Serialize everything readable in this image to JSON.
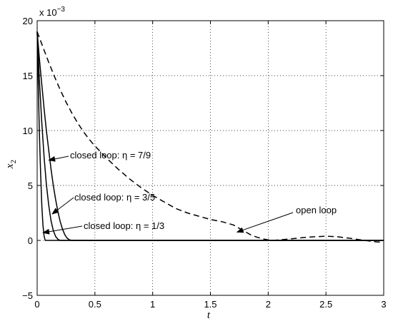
{
  "chart_data": {
    "type": "line",
    "xlabel": "t",
    "ylabel": "x",
    "ylabel_subscript": "2",
    "scale_note": "x 10",
    "scale_exponent": "−3",
    "xlim": [
      0,
      3
    ],
    "ylim": [
      -5,
      20
    ],
    "xticks": [
      "0",
      "0.5",
      "1",
      "1.5",
      "2",
      "2.5",
      "3"
    ],
    "yticks": [
      "−5",
      "0",
      "5",
      "10",
      "15",
      "20"
    ],
    "grid": true,
    "series": [
      {
        "name": "open loop",
        "style": "dashed",
        "points": [
          [
            0,
            19.0
          ],
          [
            0.05,
            17.6
          ],
          [
            0.1,
            16.2
          ],
          [
            0.15,
            14.9
          ],
          [
            0.2,
            13.7
          ],
          [
            0.25,
            12.6
          ],
          [
            0.3,
            11.6
          ],
          [
            0.35,
            10.7
          ],
          [
            0.4,
            9.9
          ],
          [
            0.45,
            9.2
          ],
          [
            0.5,
            8.6
          ],
          [
            0.6,
            7.5
          ],
          [
            0.7,
            6.5
          ],
          [
            0.8,
            5.6
          ],
          [
            0.9,
            4.8
          ],
          [
            1.0,
            4.1
          ],
          [
            1.1,
            3.5
          ],
          [
            1.2,
            2.9
          ],
          [
            1.3,
            2.5
          ],
          [
            1.4,
            2.2
          ],
          [
            1.5,
            1.9
          ],
          [
            1.6,
            1.7
          ],
          [
            1.7,
            1.4
          ],
          [
            1.75,
            1.1
          ],
          [
            1.8,
            0.8
          ],
          [
            1.85,
            0.5
          ],
          [
            1.9,
            0.3
          ],
          [
            1.95,
            0.15
          ],
          [
            2.0,
            0.05
          ],
          [
            2.05,
            0.0
          ],
          [
            2.1,
            0.05
          ],
          [
            2.2,
            0.15
          ],
          [
            2.3,
            0.25
          ],
          [
            2.4,
            0.33
          ],
          [
            2.5,
            0.38
          ],
          [
            2.6,
            0.33
          ],
          [
            2.7,
            0.2
          ],
          [
            2.8,
            0.05
          ],
          [
            2.9,
            -0.1
          ],
          [
            2.95,
            -0.15
          ],
          [
            3.0,
            -0.15
          ]
        ]
      },
      {
        "name": "closed loop: η = 7/9",
        "style": "solid",
        "points": [
          [
            0,
            19.0
          ],
          [
            0.02,
            16.5
          ],
          [
            0.04,
            14.2
          ],
          [
            0.06,
            12.0
          ],
          [
            0.08,
            10.0
          ],
          [
            0.1,
            8.2
          ],
          [
            0.12,
            6.5
          ],
          [
            0.14,
            5.0
          ],
          [
            0.16,
            3.7
          ],
          [
            0.18,
            2.6
          ],
          [
            0.2,
            1.7
          ],
          [
            0.22,
            1.0
          ],
          [
            0.24,
            0.5
          ],
          [
            0.26,
            0.2
          ],
          [
            0.28,
            0.05
          ],
          [
            0.3,
            0.0
          ],
          [
            3.0,
            0.0
          ]
        ]
      },
      {
        "name": "closed loop: η = 3/5",
        "style": "solid",
        "points": [
          [
            0,
            19.0
          ],
          [
            0.02,
            14.5
          ],
          [
            0.04,
            10.7
          ],
          [
            0.06,
            7.6
          ],
          [
            0.08,
            5.1
          ],
          [
            0.1,
            3.2
          ],
          [
            0.12,
            1.8
          ],
          [
            0.14,
            0.9
          ],
          [
            0.16,
            0.35
          ],
          [
            0.18,
            0.1
          ],
          [
            0.2,
            0.0
          ],
          [
            3.0,
            0.0
          ]
        ]
      },
      {
        "name": "closed loop: η = 1/3",
        "style": "solid",
        "points": [
          [
            0,
            19.0
          ],
          [
            0.01,
            14.0
          ],
          [
            0.02,
            9.6
          ],
          [
            0.03,
            6.0
          ],
          [
            0.04,
            3.2
          ],
          [
            0.05,
            1.4
          ],
          [
            0.06,
            0.4
          ],
          [
            0.07,
            0.0
          ],
          [
            3.0,
            0.0
          ]
        ]
      }
    ],
    "annotations": [
      {
        "text": "closed loop: η = 7/9",
        "series": 1,
        "arrow_to": [
          0.1,
          7.3
        ]
      },
      {
        "text": "closed loop: η = 3/5",
        "series": 2,
        "arrow_to": [
          0.13,
          2.4
        ]
      },
      {
        "text": "closed loop: η = 1/3",
        "series": 3,
        "arrow_to": [
          0.05,
          0.7
        ]
      },
      {
        "text": "open loop",
        "series": 0,
        "arrow_to": [
          1.73,
          0.75
        ]
      }
    ]
  }
}
